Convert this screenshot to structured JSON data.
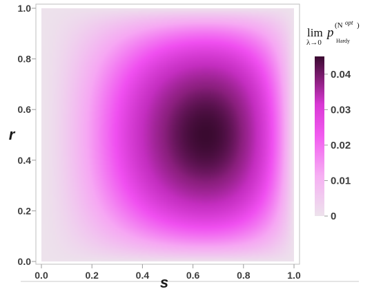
{
  "chart_data": {
    "type": "heatmap",
    "title": "",
    "xlabel": "s",
    "ylabel": "r",
    "xlim": [
      0.0,
      1.0
    ],
    "ylim": [
      0.0,
      1.0
    ],
    "x_ticks": [
      "0.0",
      "0.2",
      "0.4",
      "0.6",
      "0.8",
      "1.0"
    ],
    "y_ticks": [
      "0.0",
      "0.2",
      "0.4",
      "0.6",
      "0.8",
      "1.0"
    ],
    "colorbar": {
      "title_lim": "lim",
      "title_sub": "λ→0",
      "title_p": "p",
      "title_sup": "(N",
      "title_sup_opt": "opt",
      "title_sup_close": ")",
      "title_sub_hardy": "Hardy",
      "ticks": [
        "0",
        "0.01",
        "0.02",
        "0.03",
        "0.04"
      ],
      "tick_values": [
        0,
        0.01,
        0.02,
        0.03,
        0.04
      ],
      "range": [
        0,
        0.045
      ]
    },
    "peak": {
      "s": 0.65,
      "r": 0.5,
      "value": 0.045
    },
    "colors": {
      "low": "#ede2ec",
      "mid_low": "#f6a8f3",
      "mid": "#f04ff0",
      "mid_high": "#c42ec0",
      "high": "#3a0a30"
    },
    "grid": false
  }
}
